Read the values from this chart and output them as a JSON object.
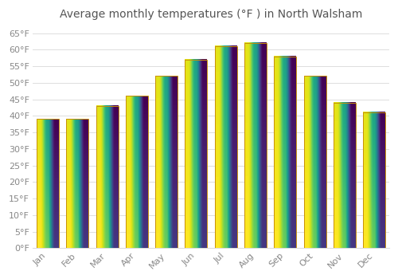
{
  "title": "Average monthly temperatures (°F ) in North Walsham",
  "months": [
    "Jan",
    "Feb",
    "Mar",
    "Apr",
    "May",
    "Jun",
    "Jul",
    "Aug",
    "Sep",
    "Oct",
    "Nov",
    "Dec"
  ],
  "values": [
    39,
    39,
    43,
    46,
    52,
    57,
    61,
    62,
    58,
    52,
    44,
    41
  ],
  "bar_color_top": "#FFCC44",
  "bar_color_bottom": "#F5A020",
  "bar_edge_color": "#C8900A",
  "background_color": "#FFFFFF",
  "grid_color": "#DDDDDD",
  "text_color": "#888888",
  "title_color": "#555555",
  "ylim": [
    0,
    67
  ],
  "yticks": [
    0,
    5,
    10,
    15,
    20,
    25,
    30,
    35,
    40,
    45,
    50,
    55,
    60,
    65
  ],
  "ytick_labels": [
    "0°F",
    "5°F",
    "10°F",
    "15°F",
    "20°F",
    "25°F",
    "30°F",
    "35°F",
    "40°F",
    "45°F",
    "50°F",
    "55°F",
    "60°F",
    "65°F"
  ],
  "title_fontsize": 10,
  "tick_fontsize": 8,
  "figsize": [
    5.0,
    3.5
  ],
  "dpi": 100
}
